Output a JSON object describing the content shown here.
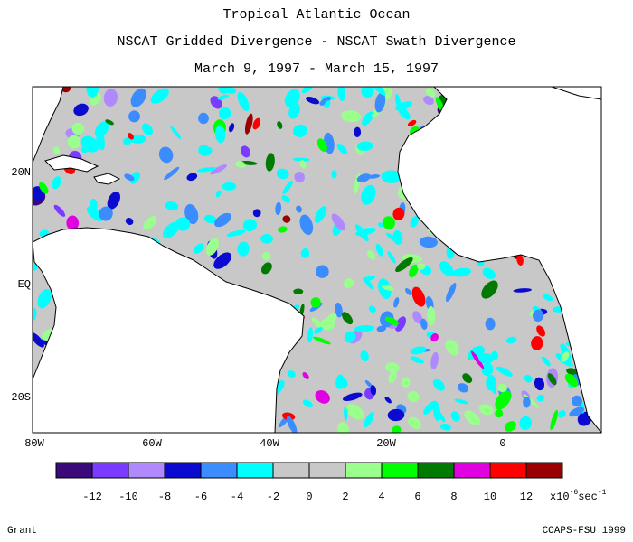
{
  "header": {
    "title": "Tropical Atlantic Ocean",
    "subtitle": "NSCAT Gridded Divergence - NSCAT Swath Divergence",
    "date_range": "March 9, 1997 - March 15, 1997"
  },
  "map": {
    "lon_ticks": [
      "80W",
      "60W",
      "40W",
      "20W",
      "0"
    ],
    "lat_ticks": [
      "20N",
      "EQ",
      "20S"
    ],
    "land_color": "#ffffff",
    "ocean_default_color": "#c8c8c8"
  },
  "legend": {
    "colors": [
      "#3a0a7a",
      "#7b3aff",
      "#b089ff",
      "#0a0ad0",
      "#3a8cff",
      "#00ffff",
      "#c8c8c8",
      "#c8c8c8",
      "#9aff8c",
      "#00ff00",
      "#007a00",
      "#e000e0",
      "#ff0000",
      "#9a0000"
    ],
    "labels": [
      "-12",
      "-10",
      "-8",
      "-6",
      "-4",
      "-2",
      "0",
      "2",
      "4",
      "6",
      "8",
      "10",
      "12"
    ],
    "unit_prefix": "x10",
    "unit_exp": "-6",
    "unit_suffix": "sec",
    "unit_suffix_exp": "-1"
  },
  "footer": {
    "left": "Grant",
    "right": "COAPS-FSU 1999"
  }
}
